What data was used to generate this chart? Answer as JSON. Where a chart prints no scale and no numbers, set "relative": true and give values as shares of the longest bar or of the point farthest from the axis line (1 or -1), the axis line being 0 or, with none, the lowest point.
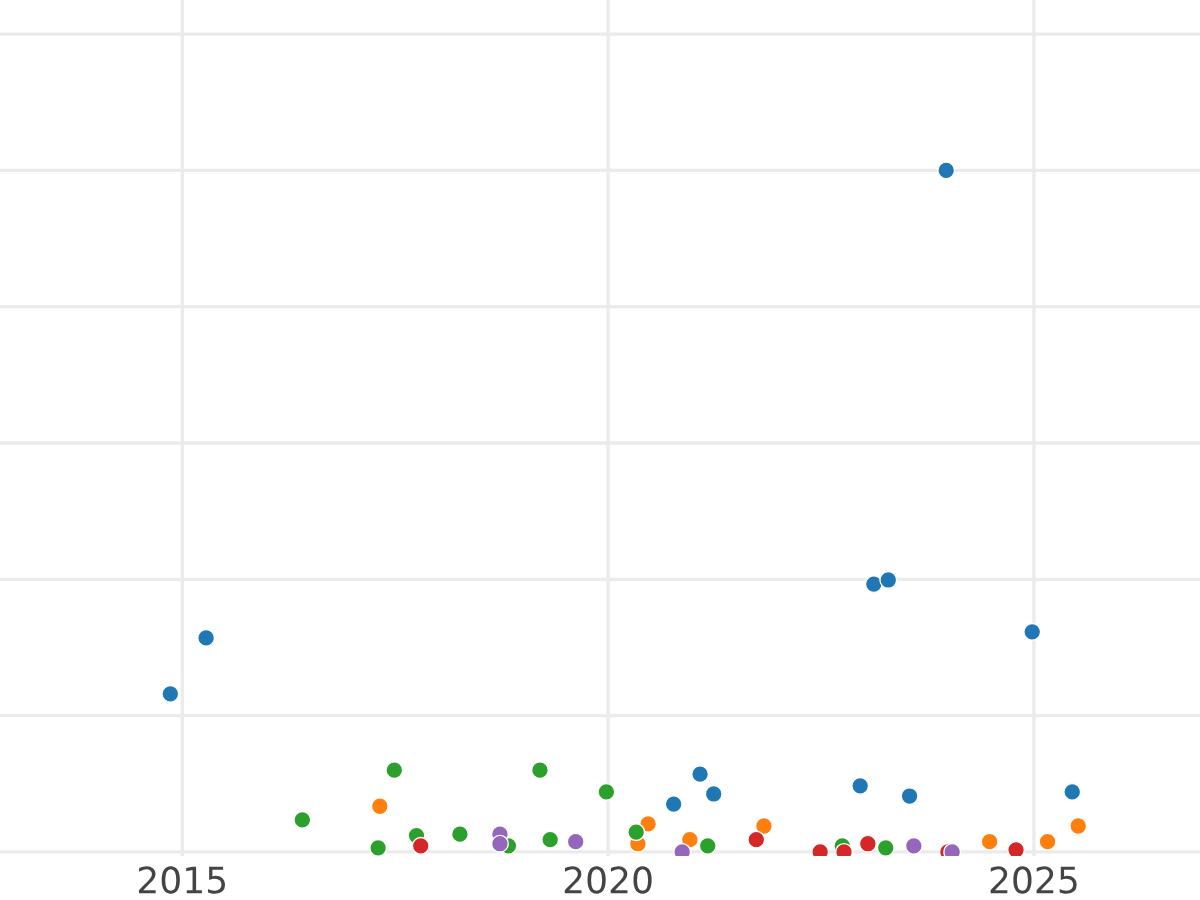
{
  "chart_data": {
    "type": "scatter",
    "relative": true,
    "grid": true,
    "tick_labels": "x",
    "marker": "circle",
    "xlim": [
      2012.86,
      2026.95
    ],
    "xticks": [
      2015,
      2020,
      2025
    ],
    "series": [
      {
        "color": "#1f77b4",
        "x": [
          2014.86,
          2015.28,
          2023.97,
          2023.12,
          2023.29,
          2024.98,
          2020.77,
          2021.08,
          2021.24,
          2022.96,
          2023.54,
          2025.45
        ],
        "values": [
          0.232,
          0.314,
          1.0,
          0.393,
          0.399,
          0.323,
          0.07,
          0.114,
          0.085,
          0.097,
          0.082,
          0.088
        ]
      },
      {
        "color": "#ff7f0e",
        "x": [
          2017.32,
          2020.47,
          2020.35,
          2020.96,
          2021.83,
          2024.48,
          2025.16,
          2025.52
        ],
        "values": [
          0.067,
          0.041,
          0.012,
          0.018,
          0.038,
          0.015,
          0.015,
          0.038
        ]
      },
      {
        "color": "#2ca02c",
        "x": [
          2016.41,
          2017.49,
          2017.3,
          2017.75,
          2018.26,
          2019.2,
          2018.83,
          2019.32,
          2019.98,
          2020.33,
          2021.17,
          2022.75,
          2023.26
        ],
        "values": [
          0.047,
          0.12,
          0.006,
          0.024,
          0.026,
          0.12,
          0.009,
          0.018,
          0.088,
          0.029,
          0.009,
          0.009,
          0.006
        ]
      },
      {
        "color": "#d62728",
        "x": [
          2017.8,
          2021.74,
          2022.49,
          2022.77,
          2023.05,
          2023.99,
          2024.79
        ],
        "values": [
          0.009,
          0.018,
          0.0,
          0.0,
          0.012,
          0.0,
          0.003
        ]
      },
      {
        "color": "#9467bd",
        "x": [
          2018.73,
          2018.73,
          2019.62,
          2020.87,
          2023.59,
          2024.04
        ],
        "values": [
          0.026,
          0.012,
          0.015,
          0.0,
          0.009,
          0.0
        ]
      }
    ]
  }
}
